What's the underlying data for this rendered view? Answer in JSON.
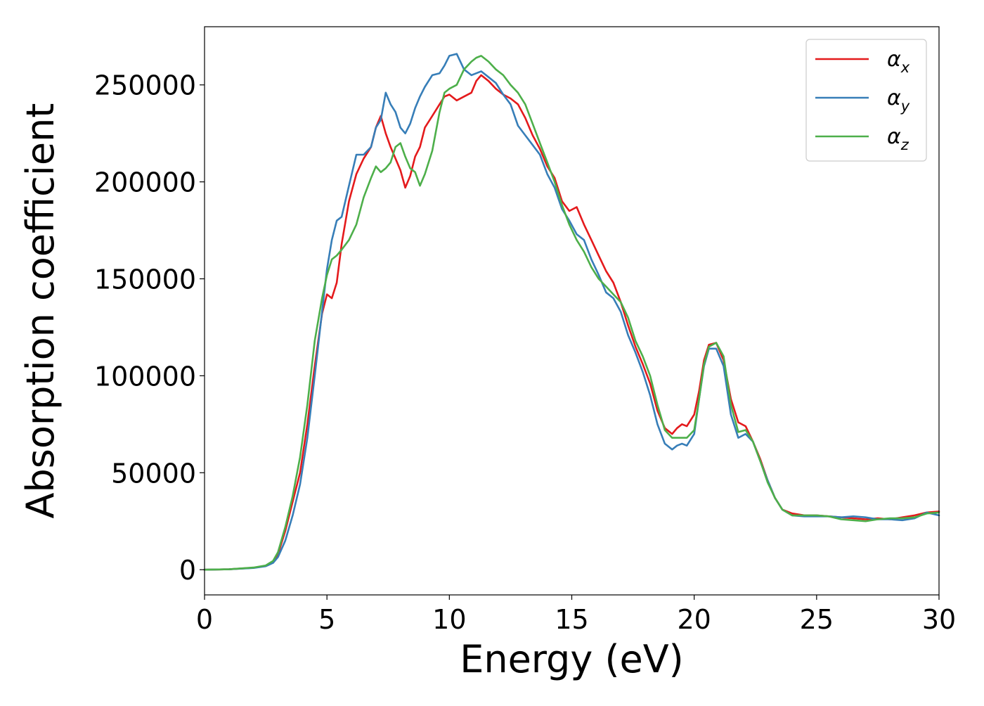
{
  "chart_data": {
    "type": "line",
    "xlabel": "Energy (eV)",
    "ylabel": "Absorption coefficient",
    "xlim": [
      0,
      30
    ],
    "ylim": [
      -13000,
      280000
    ],
    "xticks": [
      0,
      5,
      10,
      15,
      20,
      25,
      30
    ],
    "xtick_labels": [
      "0",
      "5",
      "10",
      "15",
      "20",
      "25",
      "30"
    ],
    "yticks": [
      0,
      50000,
      100000,
      150000,
      200000,
      250000
    ],
    "ytick_labels": [
      "0",
      "50000",
      "100000",
      "150000",
      "200000",
      "250000"
    ],
    "grid": false,
    "legend_position": "top-right",
    "series": [
      {
        "name": "αx",
        "legend_base": "α",
        "legend_sub": "x",
        "color": "#e41a1c",
        "x": [
          0,
          1,
          2,
          2.5,
          2.8,
          3.0,
          3.3,
          3.6,
          3.9,
          4.2,
          4.5,
          4.8,
          5.0,
          5.2,
          5.4,
          5.6,
          5.9,
          6.2,
          6.5,
          6.8,
          7.0,
          7.2,
          7.4,
          7.6,
          7.8,
          8.0,
          8.2,
          8.4,
          8.6,
          8.8,
          9.0,
          9.3,
          9.6,
          9.8,
          10.0,
          10.3,
          10.6,
          10.9,
          11.1,
          11.3,
          11.6,
          11.9,
          12.2,
          12.5,
          12.8,
          13.1,
          13.4,
          13.7,
          14.0,
          14.3,
          14.6,
          14.9,
          15.2,
          15.5,
          15.8,
          16.1,
          16.4,
          16.7,
          17.0,
          17.3,
          17.6,
          17.9,
          18.2,
          18.5,
          18.8,
          19.1,
          19.3,
          19.5,
          19.7,
          20.0,
          20.2,
          20.4,
          20.6,
          20.9,
          21.2,
          21.5,
          21.8,
          22.1,
          22.4,
          22.7,
          23.0,
          23.3,
          23.6,
          24.0,
          24.5,
          25.0,
          25.5,
          26.0,
          26.5,
          27.0,
          27.5,
          28.0,
          28.5,
          29.0,
          29.5,
          30.0
        ],
        "y": [
          0,
          200,
          1000,
          2000,
          4000,
          8000,
          20000,
          35000,
          50000,
          75000,
          105000,
          132000,
          142000,
          140000,
          148000,
          168000,
          190000,
          204000,
          212000,
          218000,
          228000,
          234000,
          225000,
          218000,
          212000,
          206000,
          197000,
          203000,
          213000,
          218000,
          228000,
          234000,
          240000,
          244000,
          245000,
          242000,
          244000,
          246000,
          252000,
          255000,
          252000,
          248000,
          245000,
          243000,
          240000,
          233000,
          224000,
          217000,
          208000,
          202000,
          190000,
          185000,
          187000,
          178000,
          170000,
          162000,
          154000,
          148000,
          138000,
          126000,
          115000,
          106000,
          96000,
          82000,
          73000,
          70000,
          73000,
          75000,
          74000,
          80000,
          92000,
          108000,
          116000,
          117000,
          108000,
          88000,
          76000,
          74000,
          66000,
          57000,
          46000,
          37000,
          31000,
          29000,
          28000,
          28000,
          27500,
          27000,
          26500,
          26000,
          26500,
          26000,
          27000,
          28000,
          29500,
          30000
        ]
      },
      {
        "name": "αy",
        "legend_base": "α",
        "legend_sub": "y",
        "color": "#377eb8",
        "x": [
          0,
          1,
          2,
          2.5,
          2.8,
          3.0,
          3.3,
          3.6,
          3.9,
          4.2,
          4.5,
          4.8,
          5.0,
          5.2,
          5.4,
          5.6,
          5.9,
          6.2,
          6.5,
          6.8,
          7.0,
          7.2,
          7.4,
          7.6,
          7.8,
          8.0,
          8.2,
          8.4,
          8.6,
          8.8,
          9.0,
          9.3,
          9.6,
          9.8,
          10.0,
          10.3,
          10.6,
          10.9,
          11.1,
          11.3,
          11.6,
          11.9,
          12.2,
          12.5,
          12.8,
          13.1,
          13.4,
          13.7,
          14.0,
          14.3,
          14.6,
          14.9,
          15.2,
          15.5,
          15.8,
          16.1,
          16.4,
          16.7,
          17.0,
          17.3,
          17.6,
          17.9,
          18.2,
          18.5,
          18.8,
          19.1,
          19.3,
          19.5,
          19.7,
          20.0,
          20.2,
          20.4,
          20.6,
          20.9,
          21.2,
          21.5,
          21.8,
          22.1,
          22.4,
          22.7,
          23.0,
          23.3,
          23.6,
          24.0,
          24.5,
          25.0,
          25.5,
          26.0,
          26.5,
          27.0,
          27.5,
          28.0,
          28.5,
          29.0,
          29.5,
          30.0
        ],
        "y": [
          0,
          200,
          900,
          1800,
          3500,
          6500,
          15000,
          28000,
          44000,
          68000,
          100000,
          133000,
          155000,
          170000,
          180000,
          182000,
          198000,
          214000,
          214000,
          218000,
          228000,
          232000,
          246000,
          240000,
          236000,
          228000,
          225000,
          230000,
          238000,
          244000,
          249000,
          255000,
          256000,
          260000,
          265000,
          266000,
          258000,
          255000,
          256000,
          257000,
          254000,
          251000,
          245000,
          240000,
          229000,
          224000,
          219000,
          214000,
          204000,
          197000,
          186000,
          180000,
          173000,
          170000,
          160000,
          152000,
          143000,
          140000,
          133000,
          121000,
          112000,
          102000,
          90000,
          75000,
          65000,
          62000,
          64000,
          65000,
          64000,
          70000,
          88000,
          105000,
          114000,
          114000,
          105000,
          80000,
          68000,
          70000,
          66000,
          56000,
          46000,
          37000,
          31000,
          28000,
          27500,
          27500,
          27500,
          27000,
          27500,
          27000,
          26000,
          26000,
          25500,
          26500,
          29500,
          28000
        ]
      },
      {
        "name": "αz",
        "legend_base": "α",
        "legend_sub": "z",
        "color": "#4daf4a",
        "x": [
          0,
          1,
          2,
          2.5,
          2.8,
          3.0,
          3.3,
          3.6,
          3.9,
          4.2,
          4.5,
          4.8,
          5.0,
          5.2,
          5.4,
          5.6,
          5.9,
          6.2,
          6.5,
          6.8,
          7.0,
          7.2,
          7.4,
          7.6,
          7.8,
          8.0,
          8.2,
          8.4,
          8.6,
          8.8,
          9.0,
          9.3,
          9.6,
          9.8,
          10.0,
          10.3,
          10.6,
          10.9,
          11.1,
          11.3,
          11.6,
          11.9,
          12.2,
          12.5,
          12.8,
          13.1,
          13.4,
          13.7,
          14.0,
          14.3,
          14.6,
          14.9,
          15.2,
          15.5,
          15.8,
          16.1,
          16.4,
          16.7,
          17.0,
          17.3,
          17.6,
          17.9,
          18.2,
          18.5,
          18.8,
          19.1,
          19.3,
          19.5,
          19.7,
          20.0,
          20.2,
          20.4,
          20.6,
          20.9,
          21.2,
          21.5,
          21.8,
          22.1,
          22.4,
          22.7,
          23.0,
          23.3,
          23.6,
          24.0,
          24.5,
          25.0,
          25.5,
          26.0,
          26.5,
          27.0,
          27.5,
          28.0,
          28.5,
          29.0,
          29.5,
          30.0
        ],
        "y": [
          0,
          200,
          1100,
          2200,
          4500,
          9000,
          22000,
          38000,
          58000,
          85000,
          118000,
          140000,
          152000,
          160000,
          162000,
          165000,
          170000,
          178000,
          192000,
          202000,
          208000,
          205000,
          207000,
          210000,
          218000,
          220000,
          213000,
          207000,
          205000,
          198000,
          204000,
          216000,
          236000,
          246000,
          248000,
          250000,
          258000,
          262000,
          264000,
          265000,
          262000,
          258000,
          255000,
          250000,
          246000,
          240000,
          230000,
          220000,
          210000,
          200000,
          188000,
          178000,
          170000,
          164000,
          156000,
          150000,
          146000,
          142000,
          138000,
          130000,
          118000,
          110000,
          100000,
          85000,
          72000,
          68000,
          68000,
          68000,
          68000,
          72000,
          88000,
          106000,
          115000,
          117000,
          110000,
          85000,
          71000,
          72000,
          66000,
          56000,
          45000,
          37000,
          31000,
          28000,
          28000,
          28000,
          27500,
          26000,
          25500,
          25000,
          26000,
          26500,
          26500,
          27000,
          29000,
          29500
        ]
      }
    ]
  }
}
